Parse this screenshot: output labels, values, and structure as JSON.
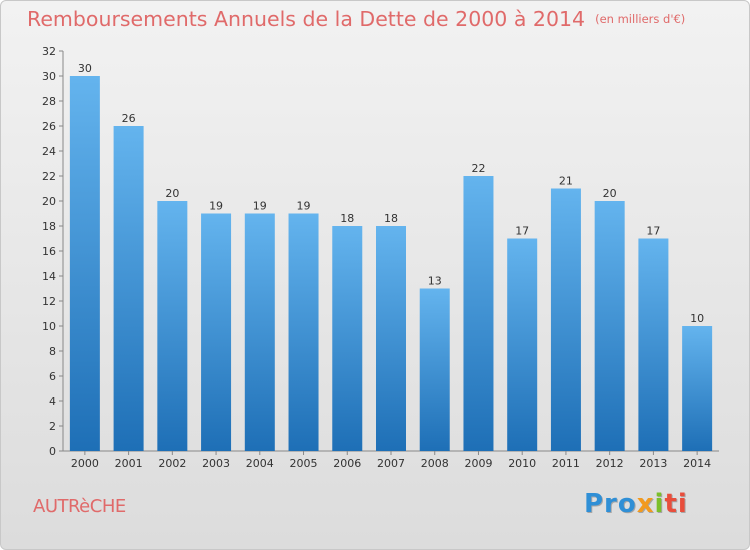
{
  "title": "Remboursements Annuels de la Dette de 2000 à 2014",
  "unit_note": "(en milliers d'€)",
  "commune": "AUTRèCHE",
  "logo": {
    "text": "Proxiti",
    "parts": [
      "Pro",
      "x",
      "i",
      "ti"
    ]
  },
  "colors": {
    "title": "#e06a6a",
    "bar_top": "#64b4ee",
    "bar_bottom": "#1e6fb6"
  },
  "chart_data": {
    "type": "bar",
    "title": "Remboursements Annuels de la Dette de 2000 à 2014",
    "xlabel": "",
    "ylabel": "",
    "categories": [
      "2000",
      "2001",
      "2002",
      "2003",
      "2004",
      "2005",
      "2006",
      "2007",
      "2008",
      "2009",
      "2010",
      "2011",
      "2012",
      "2013",
      "2014"
    ],
    "values": [
      30,
      26,
      20,
      19,
      19,
      19,
      18,
      18,
      13,
      22,
      17,
      21,
      20,
      17,
      10
    ],
    "ylim": [
      0,
      32
    ],
    "yticks": [
      0,
      2,
      4,
      6,
      8,
      10,
      12,
      14,
      16,
      18,
      20,
      22,
      24,
      26,
      28,
      30,
      32
    ],
    "grid": false,
    "legend": "none"
  }
}
